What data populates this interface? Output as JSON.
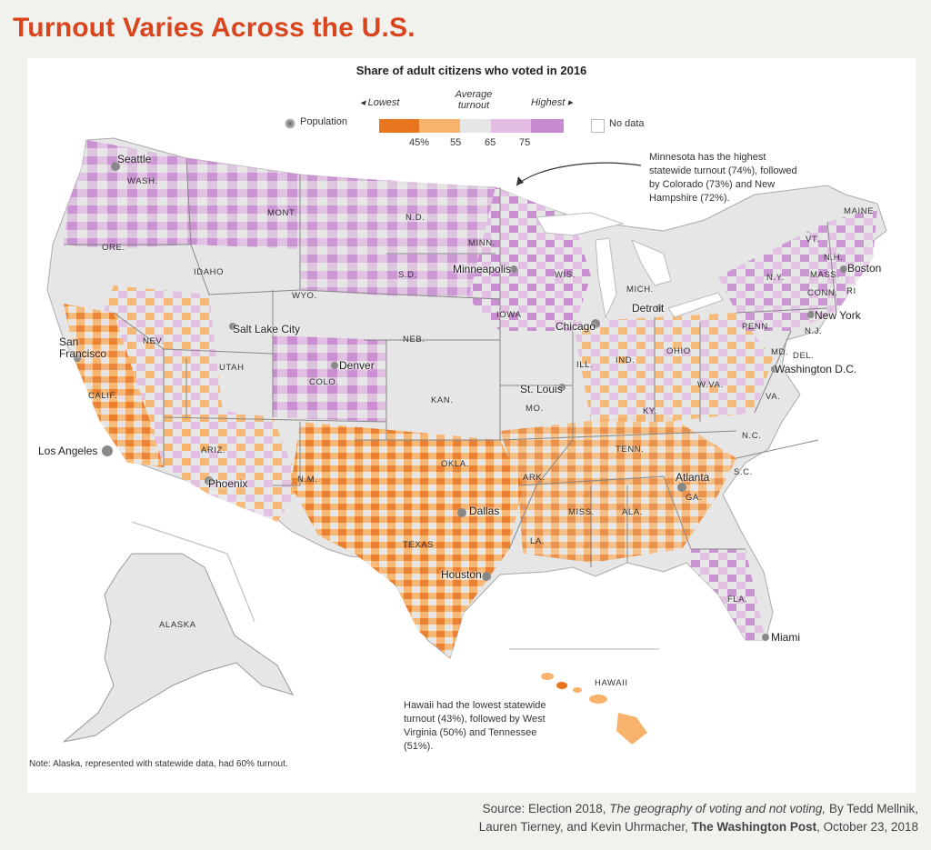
{
  "title": "Turnout Varies Across the U.S.",
  "subtitle": "Share of adult citizens who voted in 2016",
  "legend": {
    "lowest": "◂ Lowest",
    "average": "Average turnout",
    "highest": "Highest ▸",
    "population": "Population",
    "nodata": "No data",
    "ticks": [
      "45%",
      "55",
      "65",
      "75"
    ],
    "colors": [
      "#e8761e",
      "#f7b36b",
      "#e6e6e6",
      "#e3bde3",
      "#c78ad0"
    ]
  },
  "states": [
    "WASH.",
    "ORE.",
    "CALIF.",
    "NEV.",
    "IDAHO",
    "MONT.",
    "WYO.",
    "UTAH",
    "ARIZ.",
    "COLO.",
    "N.M.",
    "N.D.",
    "S.D.",
    "NEB.",
    "KAN.",
    "OKLA.",
    "TEXAS",
    "MINN.",
    "IOWA",
    "MO.",
    "ARK.",
    "LA.",
    "WIS.",
    "ILL.",
    "MICH.",
    "IND.",
    "OHIO",
    "KY.",
    "TENN.",
    "MISS.",
    "ALA.",
    "GA.",
    "FLA.",
    "S.C.",
    "N.C.",
    "VA.",
    "W.VA.",
    "PENN.",
    "N.Y.",
    "MAINE",
    "VT.",
    "N.H.",
    "MASS.",
    "CONN.",
    "RI",
    "N.J.",
    "MD.",
    "DEL.",
    "ALASKA",
    "HAWAII"
  ],
  "cities": [
    "Seattle",
    "San Francisco",
    "Los Angeles",
    "Salt Lake City",
    "Phoenix",
    "Denver",
    "Dallas",
    "Houston",
    "Minneapolis",
    "Chicago",
    "St. Louis",
    "Detroit",
    "Atlanta",
    "Miami",
    "Washington D.C.",
    "New York",
    "Boston"
  ],
  "annotations": {
    "minnesota": "Minnesota has the highest statewide turnout (74%), followed by Colorado (73%) and New Hampshire (72%).",
    "hawaii": "Hawaii had the lowest statewide turnout (43%), followed by West Virginia (50%) and Tennessee (51%).",
    "alaska_note": "Note: Alaska, represented with statewide data, had 60% turnout."
  },
  "source": {
    "prefix": "Source: Election 2018, ",
    "article": "The geography of voting and not voting,",
    "authors_1": " By Tedd Mellnik,",
    "authors_2": "Lauren Tierney, and Kevin Uhrmacher, ",
    "publisher": "The Washington Post",
    "date": ", October 23, 2018"
  }
}
